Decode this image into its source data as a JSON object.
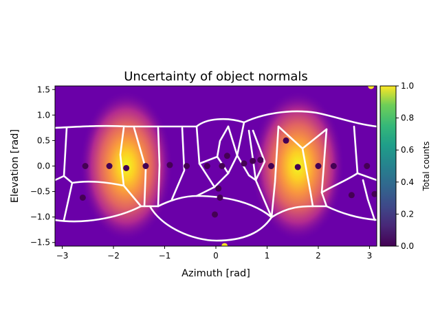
{
  "chart_data": {
    "type": "heatmap",
    "title": "Uncertainty of object normals",
    "xlabel": "Azimuth [rad]",
    "ylabel": "Elevation [rad]",
    "xlim": [
      -3.14159,
      3.14159
    ],
    "ylim": [
      -1.5708,
      1.5708
    ],
    "x_ticks": [
      -3,
      -2,
      -1,
      0,
      1,
      2,
      3
    ],
    "x_tick_labels": [
      "−3",
      "−2",
      "−1",
      "0",
      "1",
      "2",
      "3"
    ],
    "y_ticks": [
      1.5,
      1.0,
      0.5,
      0.0,
      -0.5,
      -1.0,
      -1.5
    ],
    "y_tick_labels": [
      "1.5",
      "1.0",
      "0.5",
      "0.0",
      "−0.5",
      "−1.0",
      "−1.5"
    ],
    "colormap_background": "plasma",
    "background_hotspots": [
      {
        "azimuth": -1.75,
        "elevation": 0.0,
        "intensity": 1.0
      },
      {
        "azimuth": 1.6,
        "elevation": 0.0,
        "intensity": 1.0
      }
    ],
    "colorbar": {
      "label": "Total counts",
      "colormap": "viridis",
      "range": [
        0.0,
        1.0
      ],
      "ticks": [
        0.0,
        0.2,
        0.4,
        0.6,
        0.8,
        1.0
      ],
      "tick_labels": [
        "0.0",
        "0.2",
        "0.4",
        "0.6",
        "0.8",
        "1.0"
      ]
    },
    "points": [
      {
        "azimuth": -2.55,
        "elevation": 0.0,
        "value": 0.0
      },
      {
        "azimuth": -2.6,
        "elevation": -0.62,
        "value": 0.0
      },
      {
        "azimuth": -2.08,
        "elevation": 0.0,
        "value": 0.0
      },
      {
        "azimuth": -1.75,
        "elevation": -0.04,
        "value": 0.0
      },
      {
        "azimuth": -1.37,
        "elevation": 0.0,
        "value": 0.0
      },
      {
        "azimuth": -0.9,
        "elevation": 0.02,
        "value": 0.0
      },
      {
        "azimuth": -0.57,
        "elevation": 0.0,
        "value": 0.0
      },
      {
        "azimuth": -0.17,
        "elevation": 0.0,
        "value": 0.0
      },
      {
        "azimuth": 0.12,
        "elevation": 0.0,
        "value": 0.0
      },
      {
        "azimuth": 0.22,
        "elevation": 0.2,
        "value": 0.0
      },
      {
        "azimuth": 0.05,
        "elevation": -0.44,
        "value": 0.0
      },
      {
        "azimuth": 0.08,
        "elevation": -0.62,
        "value": 0.0
      },
      {
        "azimuth": -0.02,
        "elevation": -0.95,
        "value": 0.0
      },
      {
        "azimuth": 0.55,
        "elevation": 0.05,
        "value": 0.0
      },
      {
        "azimuth": 0.72,
        "elevation": 0.1,
        "value": 0.0
      },
      {
        "azimuth": 0.87,
        "elevation": 0.12,
        "value": 0.0
      },
      {
        "azimuth": 1.08,
        "elevation": 0.0,
        "value": 0.0
      },
      {
        "azimuth": 1.37,
        "elevation": 0.5,
        "value": 0.0
      },
      {
        "azimuth": 1.6,
        "elevation": -0.02,
        "value": 0.0
      },
      {
        "azimuth": 2.0,
        "elevation": 0.0,
        "value": 0.0
      },
      {
        "azimuth": 2.3,
        "elevation": 0.0,
        "value": 0.0
      },
      {
        "azimuth": 2.65,
        "elevation": -0.57,
        "value": 0.0
      },
      {
        "azimuth": 2.95,
        "elevation": 0.0,
        "value": 0.0
      },
      {
        "azimuth": 3.1,
        "elevation": -0.55,
        "value": 0.0
      },
      {
        "azimuth": 3.03,
        "elevation": 1.57,
        "value": 1.0
      },
      {
        "azimuth": 0.17,
        "elevation": -1.57,
        "value": 1.0
      }
    ],
    "grid": false,
    "legend": "none"
  }
}
